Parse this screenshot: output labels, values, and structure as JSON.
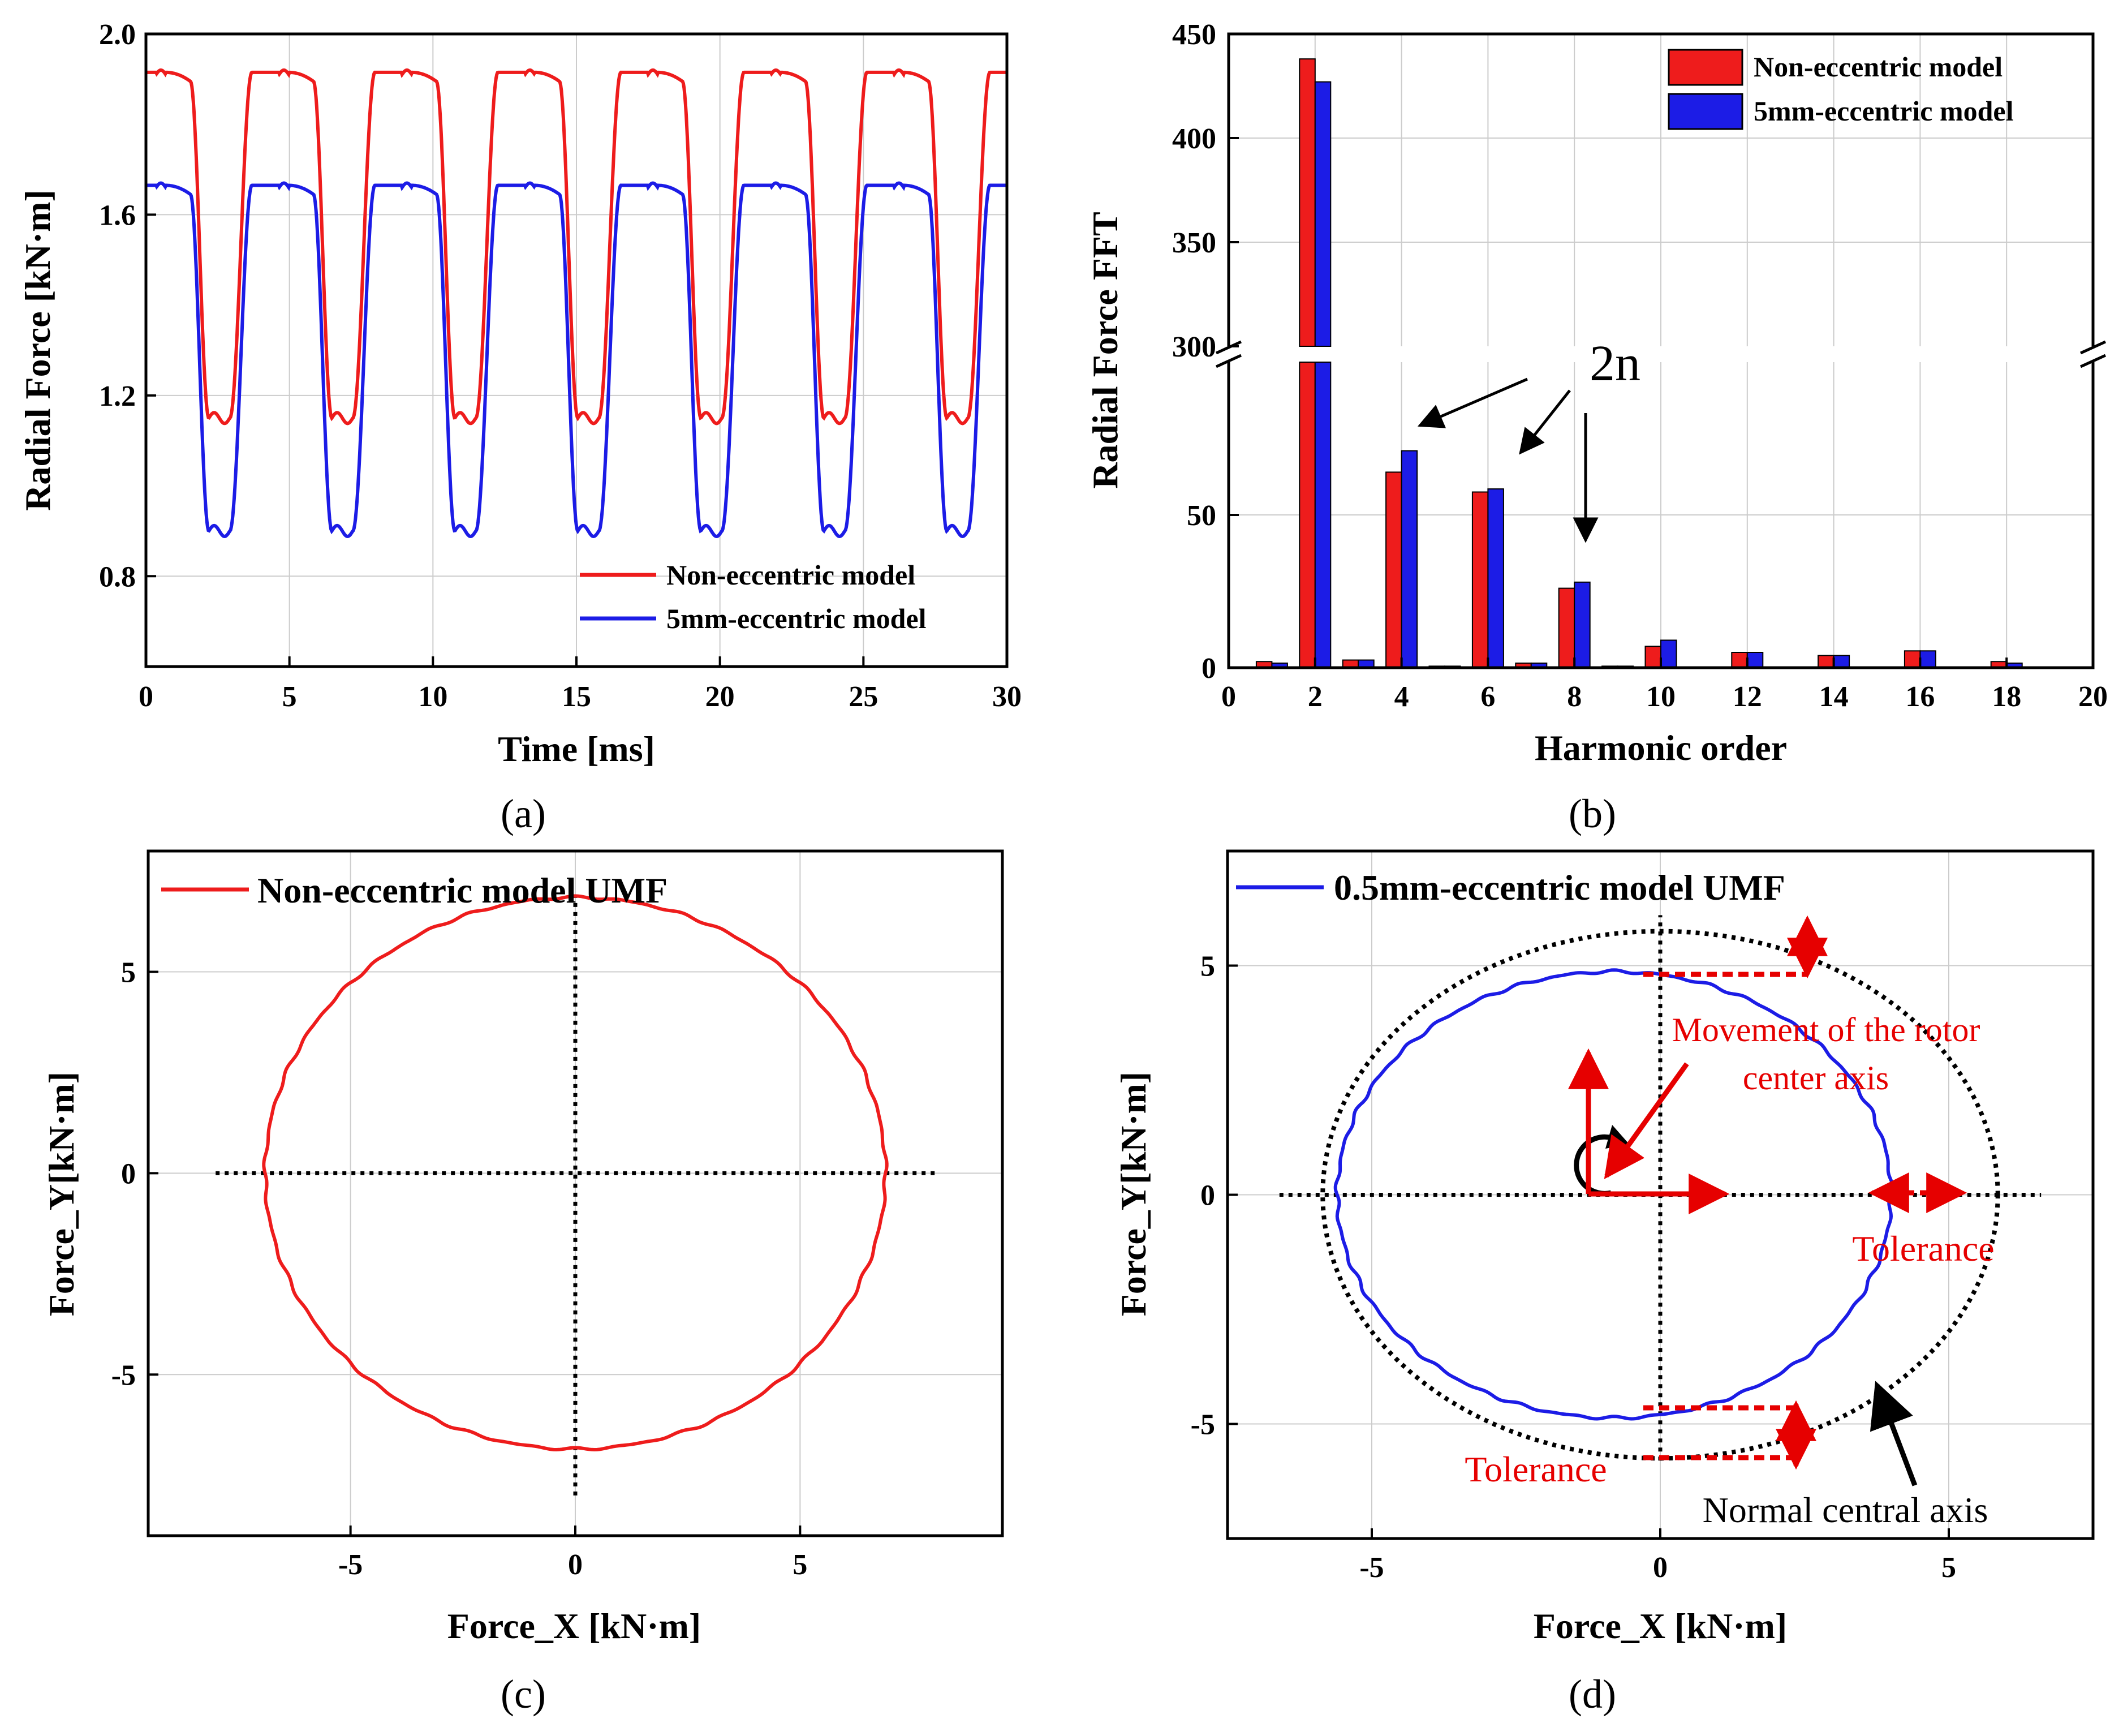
{
  "colors": {
    "red": "#ee1c1c",
    "blue": "#1c1ce6",
    "black": "#000000",
    "grid": "#cccccc",
    "annot_red": "#e60000"
  },
  "chart_data": [
    {
      "id": "a",
      "type": "line",
      "caption": "(a)",
      "xlabel": "Time [ms]",
      "ylabel": "Radial Force [kN·m]",
      "xlim": [
        0,
        30
      ],
      "ylim": [
        0.6,
        2.0
      ],
      "xticks": [
        "0",
        "5",
        "10",
        "15",
        "20",
        "25",
        "30"
      ],
      "yticks": [
        "0.8",
        "1.2",
        "1.6",
        "2.0"
      ],
      "period_ms": 4.2857,
      "series": [
        {
          "name": "Non-eccentric model",
          "color": "#ee1c1c",
          "high": 1.915,
          "low": 1.15
        },
        {
          "name": "5mm-eccentric model",
          "color": "#1c1ce6",
          "high": 1.665,
          "low": 0.9
        }
      ],
      "legend": "bottom-right",
      "grid": true
    },
    {
      "id": "b",
      "type": "bar",
      "caption": "(b)",
      "xlabel": "Harmonic order",
      "ylabel": "Radial Force FFT",
      "xlim": [
        0,
        20
      ],
      "ylim_lower": [
        0,
        100
      ],
      "ylim_upper": [
        300,
        450
      ],
      "xticks": [
        "0",
        "2",
        "4",
        "6",
        "8",
        "10",
        "12",
        "14",
        "16",
        "18",
        "20"
      ],
      "yticks_lower": [
        "0",
        "50"
      ],
      "yticks_upper": [
        "300",
        "350",
        "400",
        "450"
      ],
      "x": [
        1,
        2,
        3,
        4,
        5,
        6,
        7,
        8,
        9,
        10,
        12,
        14,
        16,
        18
      ],
      "series": [
        {
          "name": "Non-eccentric model",
          "color": "#ee1c1c",
          "values": [
            2,
            438,
            2.5,
            64,
            0.5,
            57.5,
            1.5,
            26,
            0.5,
            7,
            5,
            4,
            5.5,
            2
          ]
        },
        {
          "name": "5mm-eccentric model",
          "color": "#1c1ce6",
          "values": [
            1.5,
            427,
            2.5,
            71,
            0.5,
            58.5,
            1.5,
            28,
            0.5,
            9,
            5,
            4,
            5.5,
            1.5
          ]
        }
      ],
      "annotations": [
        "2n"
      ],
      "legend": "top-right",
      "grid": true
    },
    {
      "id": "c",
      "type": "line",
      "caption": "(c)",
      "xlabel": "Force_X [kN·m]",
      "ylabel": "Force_Y[kN·m]",
      "xlim": [
        -9.5,
        9.5
      ],
      "ylim": [
        -9,
        8
      ],
      "xticks": [
        "-5",
        "0",
        "5"
      ],
      "yticks": [
        "5",
        "0",
        "-5"
      ],
      "series": [
        {
          "name": "Non-eccentric model UMF",
          "color": "#ee1c1c",
          "center": [
            0,
            0
          ],
          "radius_x": 6.9,
          "radius_y": 6.85
        }
      ],
      "axes_lines": {
        "x_range": [
          -8,
          8
        ],
        "y_range": [
          -8,
          6.9
        ]
      },
      "legend": "top-left",
      "grid": true
    },
    {
      "id": "d",
      "type": "line",
      "caption": "(d)",
      "xlabel": "Force_X [kN·m]",
      "ylabel": "Force_Y[kN·m]",
      "xlim": [
        -7.5,
        7.5
      ],
      "ylim": [
        -7.5,
        7.5
      ],
      "xticks": [
        "-5",
        "0",
        "5"
      ],
      "yticks": [
        "5",
        "0",
        "-5"
      ],
      "series": [
        {
          "name": "0.5mm-eccentric model UMF",
          "color": "#1c1ce6",
          "center": [
            -0.8,
            0
          ],
          "radius_x": 4.8,
          "radius_y": 4.87
        },
        {
          "name": "Normal central axis",
          "color": "#000000",
          "dotted": true,
          "center": [
            0,
            0
          ],
          "radius_x": 5.85,
          "radius_y": 5.75
        }
      ],
      "axes_lines": {
        "x_range": [
          -6.6,
          6.6
        ],
        "y_range": [
          -5.8,
          6.1
        ]
      },
      "annotations": [
        "Movement of the rotor",
        "center axis",
        "Tolerance",
        "Tolerance",
        "Normal central axis"
      ],
      "legend": "top-left",
      "grid": true
    }
  ]
}
